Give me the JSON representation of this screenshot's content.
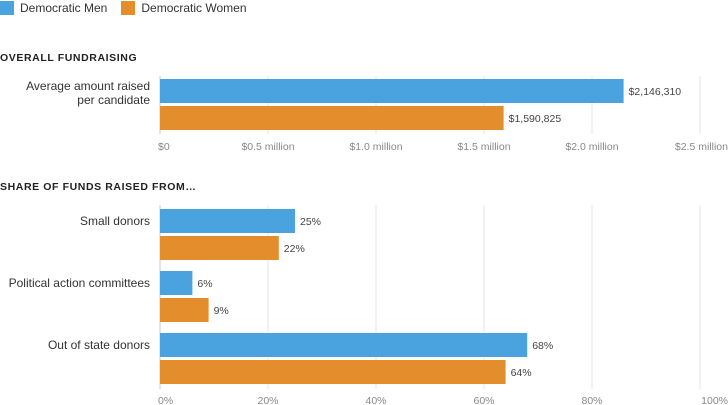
{
  "legend": [
    {
      "name": "Democratic Men",
      "color": "#4aa3df"
    },
    {
      "name": "Democratic Women",
      "color": "#e38d2c"
    }
  ],
  "chart_data": [
    {
      "type": "bar",
      "orientation": "horizontal",
      "title": "OVERALL FUNDRAISING",
      "categories": [
        [
          "Average amount raised",
          "per candidate"
        ]
      ],
      "series": [
        {
          "name": "Democratic Men",
          "values": [
            2146310
          ],
          "labels": [
            "$2,146,310"
          ]
        },
        {
          "name": "Democratic Women",
          "values": [
            1590825
          ],
          "labels": [
            "$1,590,825"
          ]
        }
      ],
      "xlim": [
        0,
        2500000
      ],
      "ticks": [
        0,
        500000,
        1000000,
        1500000,
        2000000,
        2500000
      ],
      "tick_labels": [
        "$0",
        "$0.5 million",
        "$1.0 million",
        "$1.5 million",
        "$2.0 million",
        "$2.5 million"
      ],
      "grid": true
    },
    {
      "type": "bar",
      "orientation": "horizontal",
      "title": "SHARE OF FUNDS RAISED FROM…",
      "categories": [
        [
          "Small donors"
        ],
        [
          "Political action committees"
        ],
        [
          "Out of state donors"
        ]
      ],
      "series": [
        {
          "name": "Democratic Men",
          "values": [
            25,
            6,
            68
          ],
          "labels": [
            "25%",
            "6%",
            "68%"
          ]
        },
        {
          "name": "Democratic Women",
          "values": [
            22,
            9,
            64
          ],
          "labels": [
            "22%",
            "9%",
            "64%"
          ]
        }
      ],
      "xlim": [
        0,
        100
      ],
      "ticks": [
        0,
        20,
        40,
        60,
        80,
        100
      ],
      "tick_labels": [
        "0%",
        "20%",
        "40%",
        "60%",
        "80%",
        "100%"
      ],
      "grid": true
    }
  ]
}
